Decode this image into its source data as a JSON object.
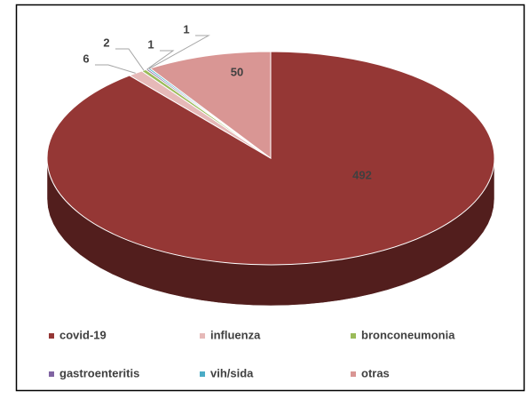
{
  "chart_data": {
    "type": "pie3d",
    "categories": [
      "covid-19",
      "influenza",
      "bronconeumonia",
      "gastroenteritis",
      "vih/sida",
      "otras"
    ],
    "values": [
      492,
      6,
      2,
      1,
      1,
      50
    ],
    "colors": [
      "#953735",
      "#e6b9b8",
      "#9bbb59",
      "#8064a2",
      "#4bacc6",
      "#d99694"
    ],
    "legend": "bottom"
  }
}
